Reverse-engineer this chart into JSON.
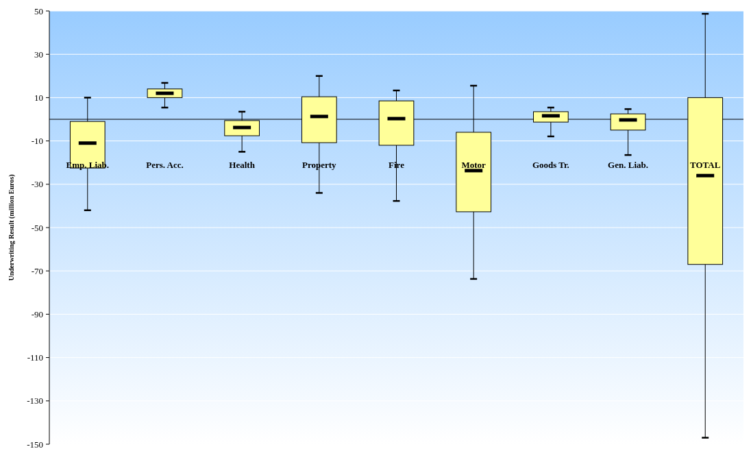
{
  "chart_data": {
    "type": "box",
    "ylabel": "Underwriting Result (million Euros)",
    "categories": [
      "Emp. Liab.",
      "Pers. Acc.",
      "Health",
      "Property",
      "Fire",
      "Motor",
      "Goods Tr.",
      "Gen. Liab.",
      "TOTAL"
    ],
    "boxes": [
      {
        "low": -42,
        "q1": -22.5,
        "median": -11,
        "q3": -1,
        "high": 10
      },
      {
        "low": 5.4,
        "q1": 10,
        "median": 12,
        "q3": 14,
        "high": 16.8
      },
      {
        "low": -15,
        "q1": -7.6,
        "median": -3.8,
        "q3": -0.6,
        "high": 3.5
      },
      {
        "low": -34,
        "q1": -10.8,
        "median": 1.3,
        "q3": 10.4,
        "high": 20
      },
      {
        "low": -37.7,
        "q1": -12,
        "median": 0.3,
        "q3": 8.5,
        "high": 13.3
      },
      {
        "low": -73.7,
        "q1": -42.7,
        "median": -23.7,
        "q3": -6,
        "high": 15.5
      },
      {
        "low": -7.9,
        "q1": -1.3,
        "median": 1.6,
        "q3": 3.5,
        "high": 5.4
      },
      {
        "low": -16.5,
        "q1": -5,
        "median": -0.3,
        "q3": 2.5,
        "high": 4.7
      },
      {
        "low": -147,
        "q1": -67,
        "median": -26,
        "q3": 10,
        "high": 48.7
      }
    ],
    "color": "#ffff99",
    "ylim": [
      -150,
      50
    ],
    "yticks": [
      -150,
      -130,
      -110,
      -90,
      -70,
      -50,
      -30,
      -10,
      10,
      30,
      50
    ],
    "grid": "y",
    "ref_lines": [
      {
        "axis": "y",
        "value": 0,
        "color": "#000000"
      }
    ]
  }
}
